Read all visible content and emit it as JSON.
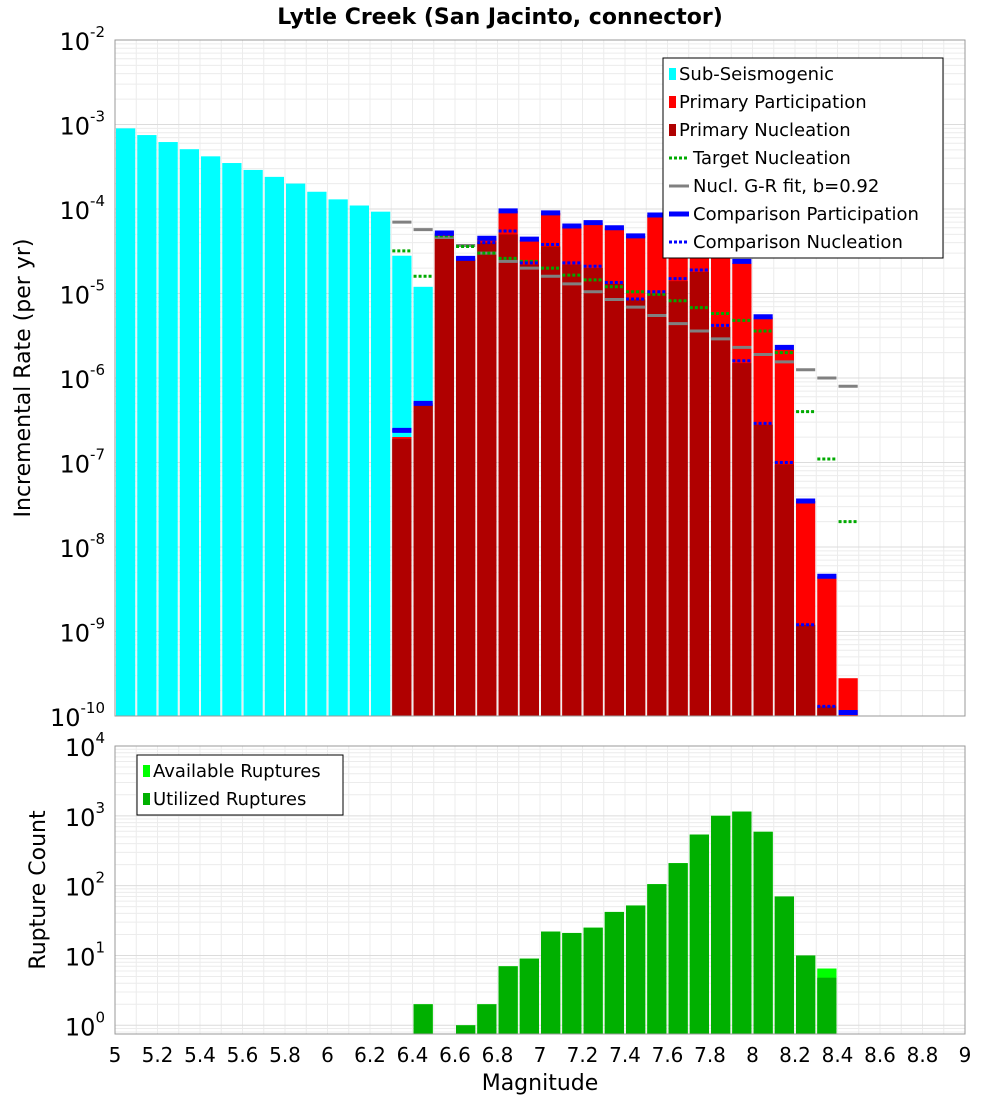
{
  "chart_data": [
    {
      "type": "bar",
      "title": "Lytle Creek (San Jacinto, connector)",
      "xlabel": "",
      "ylabel": "Incremental Rate (per yr)",
      "yscale": "log",
      "ylim": [
        1e-10,
        0.01
      ],
      "xlim": [
        5,
        9
      ],
      "grid": true,
      "legend_position": "top-right",
      "y_tick_labels": [
        {
          "base": "10",
          "exp": "-10"
        },
        {
          "base": "10",
          "exp": "-9"
        },
        {
          "base": "10",
          "exp": "-8"
        },
        {
          "base": "10",
          "exp": "-7"
        },
        {
          "base": "10",
          "exp": "-6"
        },
        {
          "base": "10",
          "exp": "-5"
        },
        {
          "base": "10",
          "exp": "-4"
        },
        {
          "base": "10",
          "exp": "-3"
        },
        {
          "base": "10",
          "exp": "-2"
        }
      ],
      "legend": [
        {
          "label": "Sub-Seismogenic",
          "color": "#00ffff",
          "style": "box"
        },
        {
          "label": "Primary Participation",
          "color": "#ff0000",
          "style": "box"
        },
        {
          "label": "Primary Nucleation",
          "color": "#b00000",
          "style": "box"
        },
        {
          "label": "Target Nucleation",
          "color": "#00aa00",
          "style": "dots"
        },
        {
          "label": "Nucl. G-R fit, b=0.92",
          "color": "#808080",
          "style": "line"
        },
        {
          "label": "Comparison Participation",
          "color": "#0000ff",
          "style": "thick"
        },
        {
          "label": "Comparison Nucleation",
          "color": "#0000ff",
          "style": "dots"
        }
      ],
      "series": [
        {
          "name": "Sub-Seismogenic",
          "color": "#00ffff",
          "x": [
            5.05,
            5.15,
            5.25,
            5.35,
            5.45,
            5.55,
            5.65,
            5.75,
            5.85,
            5.95,
            6.05,
            6.15,
            6.25,
            6.35,
            6.45
          ],
          "values": [
            0.0009,
            0.00075,
            0.00062,
            0.00051,
            0.00042,
            0.00035,
            0.00029,
            0.00024,
            0.0002,
            0.00016,
            0.00013,
            0.00011,
            9.3e-05,
            2.8e-05,
            1.2e-05
          ]
        },
        {
          "name": "Primary Participation",
          "color": "#ff0000",
          "x": [
            6.35,
            6.45,
            6.55,
            6.65,
            6.75,
            6.85,
            6.95,
            7.05,
            7.15,
            7.25,
            7.35,
            7.45,
            7.55,
            7.65,
            7.75,
            7.85,
            7.95,
            8.05,
            8.15,
            8.25,
            8.35,
            8.45
          ],
          "values": [
            2e-07,
            5e-07,
            5e-05,
            2.6e-05,
            4.5e-05,
            9.5e-05,
            4.3e-05,
            9e-05,
            6.2e-05,
            6.8e-05,
            5.9e-05,
            4.8e-05,
            8.5e-05,
            0.000145,
            4.8e-05,
            5e-05,
            2.3e-05,
            5.2e-06,
            2.2e-06,
            3.5e-08,
            4.5e-09,
            2.8e-10
          ]
        },
        {
          "name": "Primary Nucleation",
          "color": "#b00000",
          "x": [
            6.35,
            6.45,
            6.55,
            6.65,
            6.75,
            6.85,
            6.95,
            7.05,
            7.15,
            7.25,
            7.35,
            7.45,
            7.55,
            7.65,
            7.75,
            7.85,
            7.95,
            8.05,
            8.15,
            8.25,
            8.35,
            8.45
          ],
          "values": [
            1.9e-07,
            4.8e-07,
            4.8e-05,
            2.5e-05,
            4e-05,
            5e-05,
            2.2e-05,
            3.6e-05,
            2.2e-05,
            2e-05,
            1.3e-05,
            8.5e-06,
            1e-05,
            1.4e-05,
            1.8e-05,
            4e-06,
            1.5e-06,
            2.8e-07,
            9.5e-08,
            1.2e-09,
            1.3e-10,
            1e-10
          ]
        },
        {
          "name": "Target Nucleation",
          "color": "#00aa00",
          "x": [
            6.35,
            6.45,
            6.55,
            6.65,
            6.75,
            6.85,
            6.95,
            7.05,
            7.15,
            7.25,
            7.35,
            7.45,
            7.55,
            7.65,
            7.75,
            7.85,
            7.95,
            8.05,
            8.15,
            8.25,
            8.35,
            8.45
          ],
          "values": [
            3.2e-05,
            1.6e-05,
            4.8e-05,
            3.6e-05,
            3e-05,
            2.6e-05,
            2.4e-05,
            2e-05,
            1.65e-05,
            1.45e-05,
            1.2e-05,
            1.05e-05,
            9.8e-06,
            8.2e-06,
            6.8e-06,
            5.8e-06,
            4.8e-06,
            3.6e-06,
            2e-06,
            4e-07,
            1.1e-07,
            2e-08
          ]
        },
        {
          "name": "Nucl. G-R fit, b=0.92",
          "color": "#808080",
          "x": [
            6.35,
            6.45,
            6.55,
            6.65,
            6.75,
            6.85,
            6.95,
            7.05,
            7.15,
            7.25,
            7.35,
            7.45,
            7.55,
            7.65,
            7.75,
            7.85,
            7.95,
            8.05,
            8.15,
            8.25,
            8.35,
            8.45
          ],
          "values": [
            7e-05,
            5.7e-05,
            4.6e-05,
            3.7e-05,
            3e-05,
            2.4e-05,
            2e-05,
            1.6e-05,
            1.3e-05,
            1.05e-05,
            8.5e-06,
            6.9e-06,
            5.5e-06,
            4.4e-06,
            3.6e-06,
            2.9e-06,
            2.3e-06,
            1.9e-06,
            1.55e-06,
            1.25e-06,
            1e-06,
            8e-07
          ]
        },
        {
          "name": "Comparison Participation",
          "color": "#0000ff",
          "x": [
            6.35,
            6.45,
            6.55,
            6.65,
            6.75,
            6.85,
            6.95,
            7.05,
            7.15,
            7.25,
            7.35,
            7.45,
            7.55,
            7.65,
            7.75,
            7.85,
            7.95,
            8.05,
            8.15,
            8.25,
            8.35,
            8.45
          ],
          "values": [
            2.4e-07,
            5e-07,
            5.2e-05,
            2.6e-05,
            4.5e-05,
            9.5e-05,
            4.4e-05,
            9e-05,
            6.3e-05,
            6.9e-05,
            6e-05,
            4.8e-05,
            8.5e-05,
            0.00015,
            5e-05,
            5e-05,
            2.4e-05,
            5.3e-06,
            2.3e-06,
            3.5e-08,
            4.5e-09,
            1.1e-10
          ]
        },
        {
          "name": "Comparison Nucleation",
          "color": "#0000ff",
          "x": [
            6.35,
            6.45,
            6.55,
            6.65,
            6.75,
            6.85,
            6.95,
            7.05,
            7.15,
            7.25,
            7.35,
            7.45,
            7.55,
            7.65,
            7.75,
            7.85,
            7.95,
            8.05,
            8.15,
            8.25,
            8.35,
            8.45
          ],
          "values": [
            2.4e-07,
            5e-07,
            5e-05,
            2.6e-05,
            4e-05,
            5.5e-05,
            2.3e-05,
            3.8e-05,
            2.3e-05,
            2.1e-05,
            1.35e-05,
            8.6e-06,
            1.05e-05,
            1.5e-05,
            1.9e-05,
            4.2e-06,
            1.6e-06,
            2.9e-07,
            1e-07,
            1.2e-09,
            1.3e-10,
            1.1e-10
          ]
        }
      ]
    },
    {
      "type": "bar",
      "title": "",
      "xlabel": "Magnitude",
      "ylabel": "Rupture Count",
      "yscale": "log",
      "ylim": [
        0.75,
        10000
      ],
      "xlim": [
        5,
        9
      ],
      "grid": true,
      "legend_position": "top-left",
      "x_tick_labels": [
        "5",
        "5.2",
        "5.4",
        "5.6",
        "5.8",
        "6",
        "6.2",
        "6.4",
        "6.6",
        "6.8",
        "7",
        "7.2",
        "7.4",
        "7.6",
        "7.8",
        "8",
        "8.2",
        "8.4",
        "8.6",
        "8.8",
        "9"
      ],
      "y_tick_labels": [
        {
          "base": "10",
          "exp": "0"
        },
        {
          "base": "10",
          "exp": "1"
        },
        {
          "base": "10",
          "exp": "2"
        },
        {
          "base": "10",
          "exp": "3"
        },
        {
          "base": "10",
          "exp": "4"
        }
      ],
      "legend": [
        {
          "label": "Available Ruptures",
          "color": "#00ff00",
          "style": "box"
        },
        {
          "label": "Utilized Ruptures",
          "color": "#00b000",
          "style": "box"
        }
      ],
      "series": [
        {
          "name": "Available Ruptures",
          "color": "#00ff00",
          "x": [
            6.45,
            6.65,
            6.75,
            6.85,
            6.95,
            7.05,
            7.15,
            7.25,
            7.35,
            7.45,
            7.55,
            7.65,
            7.75,
            7.85,
            7.95,
            8.05,
            8.15,
            8.25,
            8.35
          ],
          "values": [
            2,
            1,
            2,
            7,
            9,
            22,
            21,
            25,
            42,
            52,
            105,
            210,
            540,
            1000,
            1150,
            590,
            70,
            10,
            6.5
          ]
        },
        {
          "name": "Utilized Ruptures",
          "color": "#00b000",
          "x": [
            6.45,
            6.65,
            6.75,
            6.85,
            6.95,
            7.05,
            7.15,
            7.25,
            7.35,
            7.45,
            7.55,
            7.65,
            7.75,
            7.85,
            7.95,
            8.05,
            8.15,
            8.25,
            8.35
          ],
          "values": [
            2,
            1,
            2,
            7,
            9,
            22,
            21,
            25,
            42,
            52,
            105,
            210,
            540,
            1000,
            1150,
            590,
            70,
            10,
            4.8
          ]
        }
      ]
    }
  ]
}
